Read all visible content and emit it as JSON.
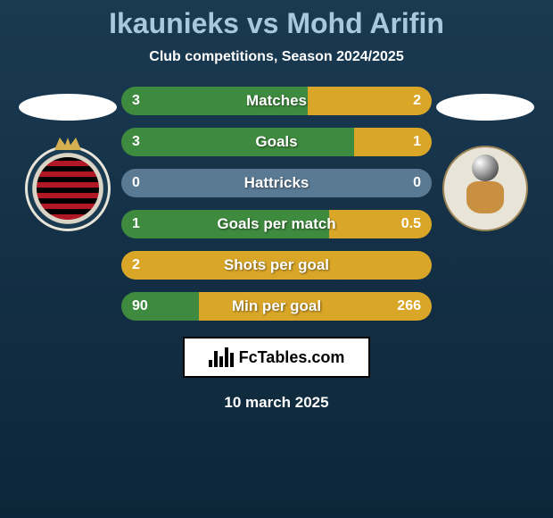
{
  "title": "Ikaunieks vs Mohd Arifin",
  "subtitle": "Club competitions, Season 2024/2025",
  "date": "10 march 2025",
  "branding": "FcTables.com",
  "colors": {
    "left_bar": "#3e8a3e",
    "right_bar": "#d9a628",
    "neutral_bar": "#5a7a94",
    "title": "#a8c8dd",
    "background_top": "#1a3a52",
    "background_bottom": "#0d2538"
  },
  "stats": [
    {
      "label": "Matches",
      "left_value": "3",
      "right_value": "2",
      "left_pct": 60,
      "right_pct": 40,
      "left_color": "#3e8a3e",
      "right_color": "#d9a628"
    },
    {
      "label": "Goals",
      "left_value": "3",
      "right_value": "1",
      "left_pct": 75,
      "right_pct": 25,
      "left_color": "#3e8a3e",
      "right_color": "#d9a628"
    },
    {
      "label": "Hattricks",
      "left_value": "0",
      "right_value": "0",
      "left_pct": 100,
      "right_pct": 0,
      "left_color": "#5a7a94",
      "right_color": "#5a7a94"
    },
    {
      "label": "Goals per match",
      "left_value": "1",
      "right_value": "0.5",
      "left_pct": 67,
      "right_pct": 33,
      "left_color": "#3e8a3e",
      "right_color": "#d9a628"
    },
    {
      "label": "Shots per goal",
      "left_value": "2",
      "right_value": "",
      "left_pct": 100,
      "right_pct": 0,
      "left_color": "#d9a628",
      "right_color": "#d9a628"
    },
    {
      "label": "Min per goal",
      "left_value": "90",
      "right_value": "266",
      "left_pct": 25,
      "right_pct": 75,
      "left_color": "#3e8a3e",
      "right_color": "#d9a628"
    }
  ]
}
